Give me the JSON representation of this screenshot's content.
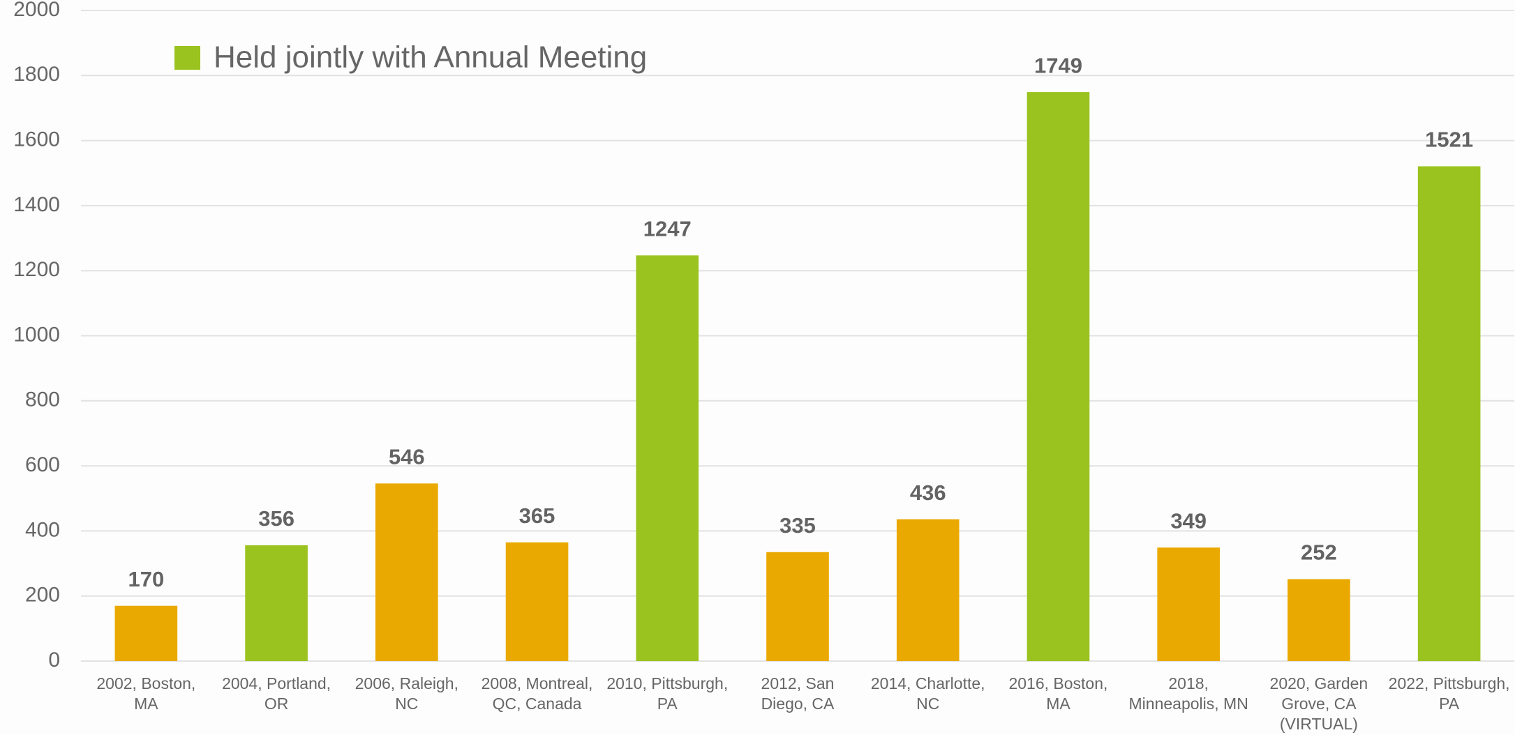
{
  "chart_data": {
    "type": "bar",
    "categories": [
      "2002, Boston, MA",
      "2004, Portland, OR",
      "2006, Raleigh, NC",
      "2008, Montreal, QC, Canada",
      "2010, Pittsburgh, PA",
      "2012, San Diego, CA",
      "2014, Charlotte, NC",
      "2016, Boston, MA",
      "2018, Minneapolis, MN",
      "2020, Garden Grove, CA (VIRTUAL)",
      "2022, Pittsburgh, PA"
    ],
    "values": [
      170,
      356,
      546,
      365,
      1247,
      335,
      436,
      1749,
      349,
      252,
      1521
    ],
    "colors": [
      "#eaa900",
      "#9bc31f",
      "#eaa900",
      "#eaa900",
      "#9bc31f",
      "#eaa900",
      "#eaa900",
      "#9bc31f",
      "#eaa900",
      "#eaa900",
      "#9bc31f"
    ],
    "legend": {
      "label": "Held jointly with Annual Meeting",
      "color": "#9bc31f",
      "position": "upper left"
    },
    "ylim": [
      0,
      2000
    ],
    "yticks": [
      0,
      200,
      400,
      600,
      800,
      1000,
      1200,
      1400,
      1600,
      1800,
      2000
    ],
    "grid": true
  }
}
